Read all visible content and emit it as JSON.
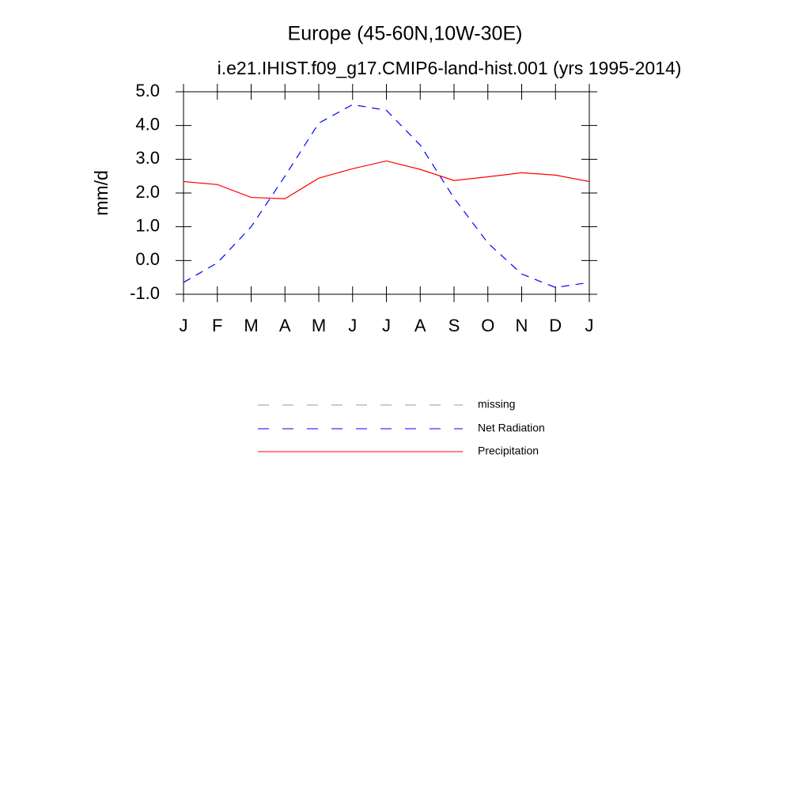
{
  "chart_data": {
    "type": "line",
    "title": "Europe (45-60N,10W-30E)",
    "subtitle": "i.e21.IHIST.f09_g17.CMIP6-land-hist.001 (yrs 1995-2014)",
    "y_label": "mm/d",
    "categories": [
      "J",
      "F",
      "M",
      "A",
      "M",
      "J",
      "J",
      "A",
      "S",
      "O",
      "N",
      "D",
      "J"
    ],
    "ylim": [
      -1,
      5
    ],
    "yticks": [
      {
        "value": 5,
        "label": "5.0"
      },
      {
        "value": 4,
        "label": "4.0"
      },
      {
        "value": 3,
        "label": "3.0"
      },
      {
        "value": 2,
        "label": "2.0"
      },
      {
        "value": 1,
        "label": "1.0"
      },
      {
        "value": 0,
        "label": "0.0"
      },
      {
        "value": -1,
        "label": "-1.0"
      }
    ],
    "series": [
      {
        "name": "missing",
        "color": "#999999",
        "dash": true,
        "values": [
          null,
          null,
          null,
          null,
          null,
          null,
          null,
          null,
          null,
          null,
          null,
          null,
          null
        ]
      },
      {
        "name": "Net Radiation",
        "color": "#0000ff",
        "dash": true,
        "values": [
          -0.65,
          -0.07,
          1.0,
          2.5,
          4.07,
          4.62,
          4.45,
          3.42,
          1.85,
          0.52,
          -0.4,
          -0.8,
          -0.65
        ]
      },
      {
        "name": "Precipitation",
        "color": "#ff0000",
        "dash": false,
        "values": [
          2.34,
          2.25,
          1.87,
          1.83,
          2.44,
          2.72,
          2.95,
          2.7,
          2.37,
          2.48,
          2.6,
          2.53,
          2.34
        ]
      }
    ]
  }
}
